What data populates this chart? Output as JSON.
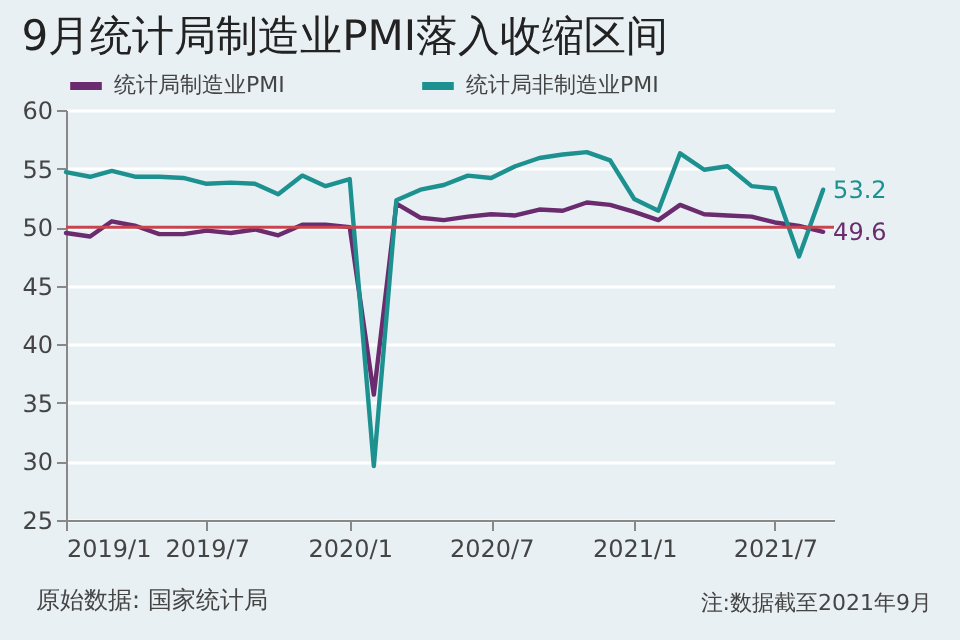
{
  "chart_data": {
    "type": "line",
    "title": "9月统计局制造业PMI落入收缩区间",
    "x": [
      "2019-01",
      "2019-02",
      "2019-03",
      "2019-04",
      "2019-05",
      "2019-06",
      "2019-07",
      "2019-08",
      "2019-09",
      "2019-10",
      "2019-11",
      "2019-12",
      "2020-01",
      "2020-02",
      "2020-03",
      "2020-04",
      "2020-05",
      "2020-06",
      "2020-07",
      "2020-08",
      "2020-09",
      "2020-10",
      "2020-11",
      "2020-12",
      "2021-01",
      "2021-02",
      "2021-03",
      "2021-04",
      "2021-05",
      "2021-06",
      "2021-07",
      "2021-08",
      "2021-09"
    ],
    "series": [
      {
        "name": "统计局制造业PMI",
        "color": "#6a2c6e",
        "values": [
          49.5,
          49.2,
          50.5,
          50.1,
          49.4,
          49.4,
          49.7,
          49.5,
          49.8,
          49.3,
          50.2,
          50.2,
          50.0,
          35.7,
          52.0,
          50.8,
          50.6,
          50.9,
          51.1,
          51.0,
          51.5,
          51.4,
          52.1,
          51.9,
          51.3,
          50.6,
          51.9,
          51.1,
          51.0,
          50.9,
          50.4,
          50.1,
          49.6
        ],
        "value_labels": [
          null,
          null,
          null,
          null,
          null,
          null,
          null,
          null,
          null,
          null,
          null,
          null,
          null,
          null,
          null,
          null,
          null,
          null,
          null,
          null,
          null,
          null,
          null,
          null,
          null,
          null,
          null,
          null,
          null,
          null,
          null,
          null,
          "49.6"
        ]
      },
      {
        "name": "统计局非制造业PMI",
        "color": "#1d9190",
        "values": [
          54.7,
          54.3,
          54.8,
          54.3,
          54.3,
          54.2,
          53.7,
          53.8,
          53.7,
          52.8,
          54.4,
          53.5,
          54.1,
          29.6,
          52.3,
          53.2,
          53.6,
          54.4,
          54.2,
          55.2,
          55.9,
          56.2,
          56.4,
          55.7,
          52.4,
          51.4,
          56.3,
          54.9,
          55.2,
          53.5,
          53.3,
          47.5,
          53.2
        ],
        "value_labels": [
          null,
          null,
          null,
          null,
          null,
          null,
          null,
          null,
          null,
          null,
          null,
          null,
          null,
          null,
          null,
          null,
          null,
          null,
          null,
          null,
          null,
          null,
          null,
          null,
          null,
          null,
          null,
          null,
          null,
          null,
          null,
          null,
          "53.2"
        ]
      }
    ],
    "xlim": [
      "2019-01",
      "2021-09-15"
    ],
    "xticks": [
      {
        "value": "2019-01",
        "label": "2019/1"
      },
      {
        "value": "2019-07",
        "label": "2019/7"
      },
      {
        "value": "2020-01",
        "label": "2020/1"
      },
      {
        "value": "2020-07",
        "label": "2020/7"
      },
      {
        "value": "2021-01",
        "label": "2021/1"
      },
      {
        "value": "2021-07",
        "label": "2021/7"
      }
    ],
    "ylim": [
      25,
      60
    ],
    "yticks": [
      25,
      30,
      35,
      40,
      45,
      50,
      55,
      60
    ],
    "ref_lines": [
      {
        "axis": "y",
        "value": 50,
        "color": "#c8454f"
      }
    ],
    "grid": "y",
    "legend": "top left",
    "marker": "none",
    "line_style": "solid",
    "annotations": [
      "原始数据: 国家统计局",
      "注:数据截至2021年9月"
    ]
  }
}
